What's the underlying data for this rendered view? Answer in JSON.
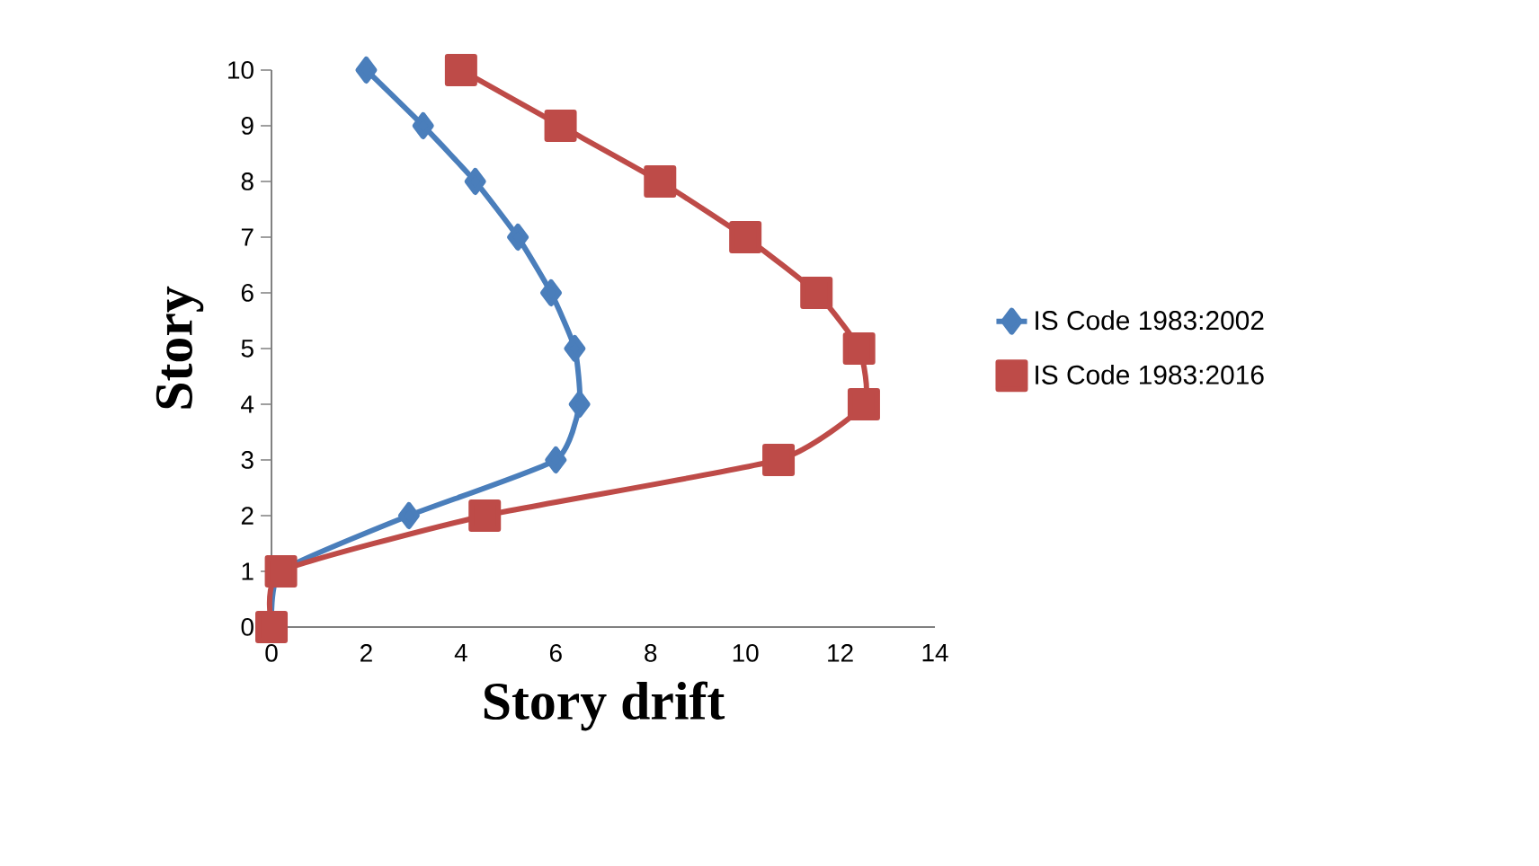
{
  "chart_data": {
    "type": "line",
    "xlabel": "Story drift",
    "ylabel": "Story",
    "xlim": [
      0,
      14
    ],
    "ylim": [
      0,
      10
    ],
    "xticks": [
      0,
      2,
      4,
      6,
      8,
      10,
      12,
      14
    ],
    "yticks": [
      0,
      1,
      2,
      3,
      4,
      5,
      6,
      7,
      8,
      9,
      10
    ],
    "legend": "right",
    "grid": false,
    "series": [
      {
        "name": "IS Code 1983:2002",
        "color": "#4a7ebb",
        "marker": "diamond",
        "x": [
          0,
          0.2,
          2.9,
          6.0,
          6.5,
          6.4,
          5.9,
          5.2,
          4.3,
          3.2,
          2.0
        ],
        "values": [
          0,
          1,
          2,
          3,
          4,
          5,
          6,
          7,
          8,
          9,
          10
        ]
      },
      {
        "name": "IS Code 1983:2016",
        "color": "#be4b48",
        "marker": "square",
        "x": [
          0,
          0.2,
          4.5,
          10.7,
          12.5,
          12.4,
          11.5,
          10.0,
          8.2,
          6.1,
          4.0
        ],
        "values": [
          0,
          1,
          2,
          3,
          4,
          5,
          6,
          7,
          8,
          9,
          10
        ]
      }
    ]
  }
}
